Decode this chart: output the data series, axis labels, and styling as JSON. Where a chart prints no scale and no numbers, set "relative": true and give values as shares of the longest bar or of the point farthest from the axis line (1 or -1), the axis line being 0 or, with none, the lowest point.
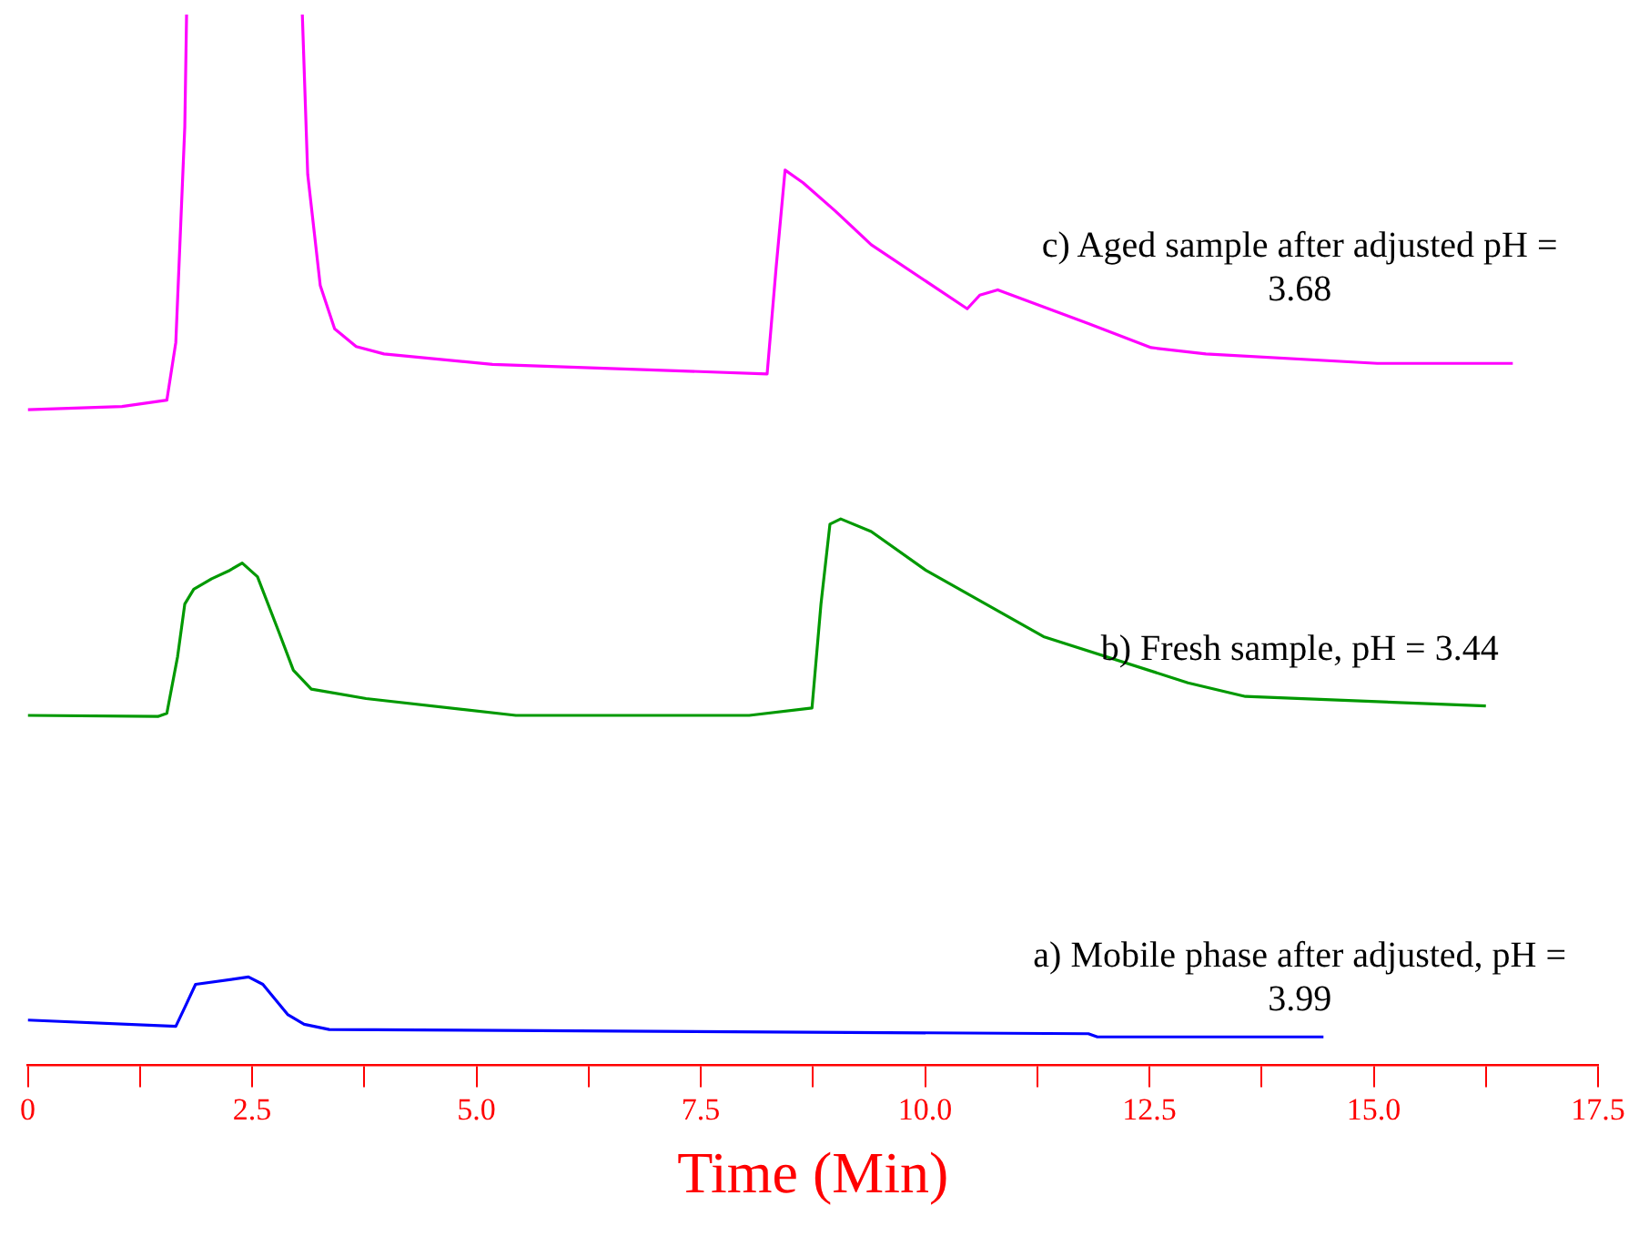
{
  "chart_data": {
    "type": "line",
    "relative": true,
    "xlabel": "Time (Min)",
    "xlim": [
      0,
      17.5
    ],
    "xticks": [
      0,
      {
        "value": 1.25,
        "label": null
      },
      2.5,
      {
        "value": 3.75,
        "label": null
      },
      {
        "value": 5,
        "label": "5.0"
      },
      {
        "value": 6.25,
        "label": null
      },
      7.5,
      {
        "value": 8.75,
        "label": null
      },
      {
        "value": 10,
        "label": "10.0"
      },
      {
        "value": 11.25,
        "label": null
      },
      12.5,
      {
        "value": 13.75,
        "label": null
      },
      {
        "value": 15,
        "label": "15.0"
      },
      {
        "value": 16.25,
        "label": null
      },
      17.5
    ],
    "grid": false,
    "legend": false,
    "marker": "none",
    "line_style": "solid",
    "series": [
      {
        "name": "c) Aged sample after adjusted pH = 3.68",
        "color": "#ff00ff",
        "x": [
          0,
          1.05,
          1.55,
          1.65,
          1.75,
          1.77,
          2.4,
          3.06,
          3.12,
          3.26,
          3.42,
          3.66,
          3.97,
          5.18,
          8.24,
          8.34,
          8.44,
          8.64,
          9.0,
          9.4,
          10.47,
          10.61,
          10.81,
          11.82,
          12.52,
          13.13,
          15.04,
          16.55
        ],
        "values": [
          0.624,
          0.627,
          0.633,
          0.688,
          0.893,
          1.0,
          null,
          1.0,
          0.848,
          0.742,
          0.701,
          0.684,
          0.677,
          0.667,
          0.658,
          0.759,
          0.852,
          0.84,
          0.813,
          0.781,
          0.72,
          0.733,
          0.738,
          0.706,
          0.683,
          0.677,
          0.668,
          0.668
        ]
      },
      {
        "name": "b) Fresh sample, pH = 3.44",
        "color": "#009900",
        "x": [
          0,
          1.45,
          1.55,
          1.67,
          1.75,
          1.85,
          2.05,
          2.25,
          2.39,
          2.56,
          2.8,
          2.96,
          3.16,
          3.77,
          5.44,
          8.04,
          8.74,
          8.84,
          8.94,
          9.06,
          9.4,
          10.01,
          11.32,
          12.93,
          13.57,
          16.25
        ],
        "values": [
          0.333,
          0.332,
          0.335,
          0.389,
          0.439,
          0.453,
          0.463,
          0.471,
          0.478,
          0.465,
          0.412,
          0.376,
          0.358,
          0.349,
          0.333,
          0.333,
          0.34,
          0.439,
          0.515,
          0.52,
          0.508,
          0.471,
          0.408,
          0.364,
          0.351,
          0.342
        ]
      },
      {
        "name": "a) Mobile phase after adjusted, pH = 3.99",
        "color": "#0000ff",
        "x": [
          0,
          1.65,
          1.75,
          1.87,
          2.46,
          2.62,
          2.9,
          3.08,
          3.36,
          11.82,
          11.92,
          14.44
        ],
        "values": [
          0.043,
          0.037,
          0.055,
          0.077,
          0.084,
          0.077,
          0.048,
          0.039,
          0.034,
          0.03,
          0.027,
          0.027
        ]
      }
    ]
  }
}
